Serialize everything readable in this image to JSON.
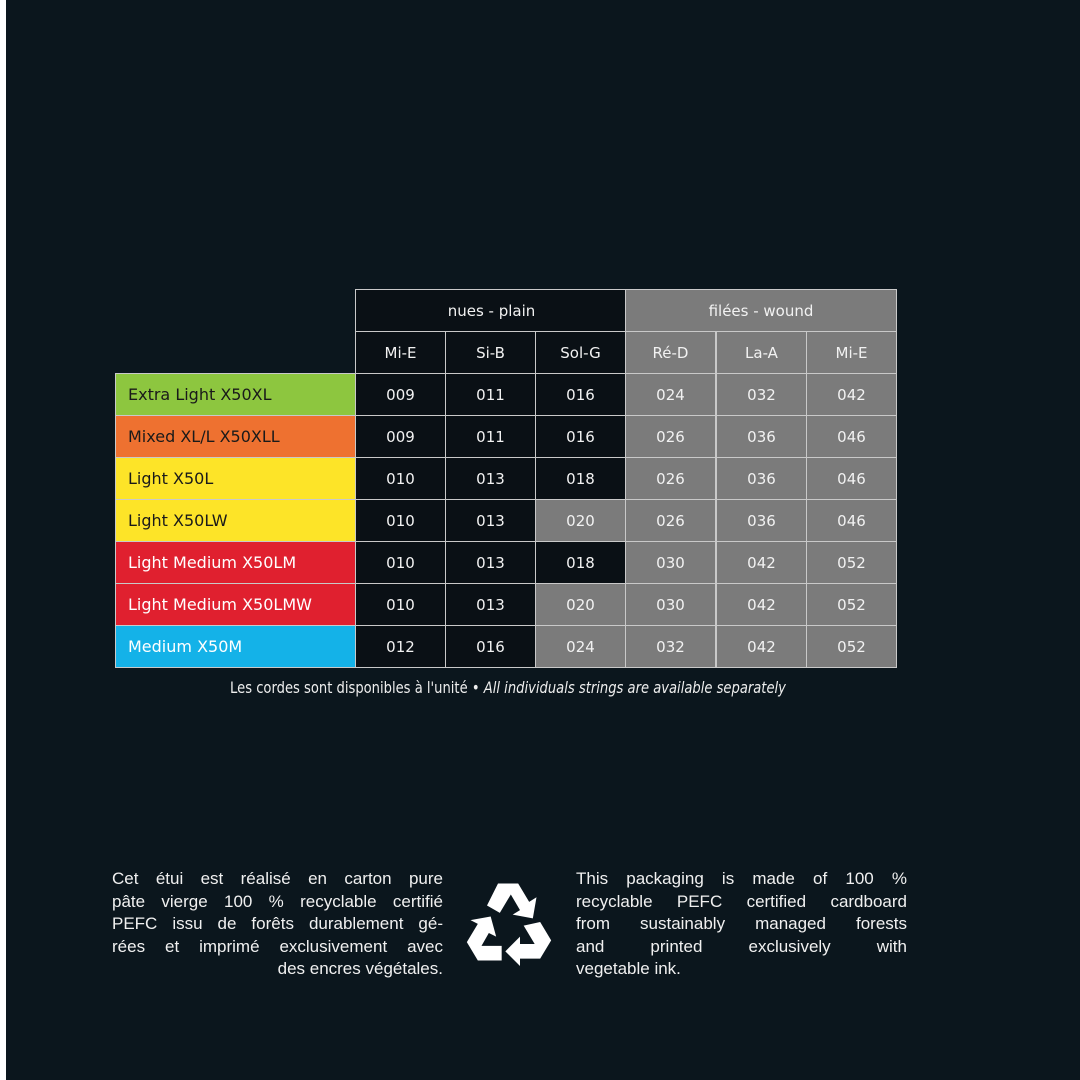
{
  "table": {
    "group_headers": [
      {
        "label": "nues - plain",
        "style": "dark"
      },
      {
        "label": "filées - wound",
        "style": "gray"
      }
    ],
    "columns": [
      "Mi-E",
      "Si-B",
      "Sol-G",
      "Ré-D",
      "La-A",
      "Mi-E"
    ],
    "rows": [
      {
        "name": "Extra Light X50XL",
        "color": "#8dc63f",
        "text_color": "#1a1a1a",
        "values": [
          "009",
          "011",
          "016",
          "024",
          "032",
          "042"
        ],
        "sol_g_wound": false
      },
      {
        "name": "Mixed XL/L X50XLL",
        "color": "#ee7130",
        "text_color": "#1a1a1a",
        "values": [
          "009",
          "011",
          "016",
          "026",
          "036",
          "046"
        ],
        "sol_g_wound": false
      },
      {
        "name": "Light X50L",
        "color": "#fde428",
        "text_color": "#1a1a1a",
        "values": [
          "010",
          "013",
          "018",
          "026",
          "036",
          "046"
        ],
        "sol_g_wound": false
      },
      {
        "name": "Light X50LW",
        "color": "#fde428",
        "text_color": "#1a1a1a",
        "values": [
          "010",
          "013",
          "020",
          "026",
          "036",
          "046"
        ],
        "sol_g_wound": true
      },
      {
        "name": "Light Medium X50LM",
        "color": "#e0202f",
        "text_color": "#ffffff",
        "values": [
          "010",
          "013",
          "018",
          "030",
          "042",
          "052"
        ],
        "sol_g_wound": false
      },
      {
        "name": "Light Medium X50LMW",
        "color": "#e0202f",
        "text_color": "#ffffff",
        "values": [
          "010",
          "013",
          "020",
          "030",
          "042",
          "052"
        ],
        "sol_g_wound": true
      },
      {
        "name": "Medium X50M",
        "color": "#14b2e8",
        "text_color": "#ffffff",
        "values": [
          "012",
          "016",
          "024",
          "032",
          "042",
          "052"
        ],
        "sol_g_wound": true
      }
    ]
  },
  "note": {
    "french": "Les cordes sont disponibles à l'unité",
    "separator": "•",
    "english": "All individuals strings are available separately"
  },
  "packaging": {
    "french_lines": [
      "Cet étui est réalisé en carton pure",
      "pâte vierge 100 % recyclable certifié",
      "PEFC issu de forêts durablement gé-",
      "rées et imprimé exclusivement avec",
      "des encres végétales."
    ],
    "english_lines": [
      "This packaging is made of 100 %",
      "recyclable PEFC certified cardboard",
      "from sustainably managed forests",
      "and printed exclusively with",
      "vegetable ink."
    ],
    "icon": "recycle-icon"
  },
  "colors": {
    "background": "#0b161d",
    "plain": "#0a1015",
    "wound": "#7b7b7b"
  }
}
